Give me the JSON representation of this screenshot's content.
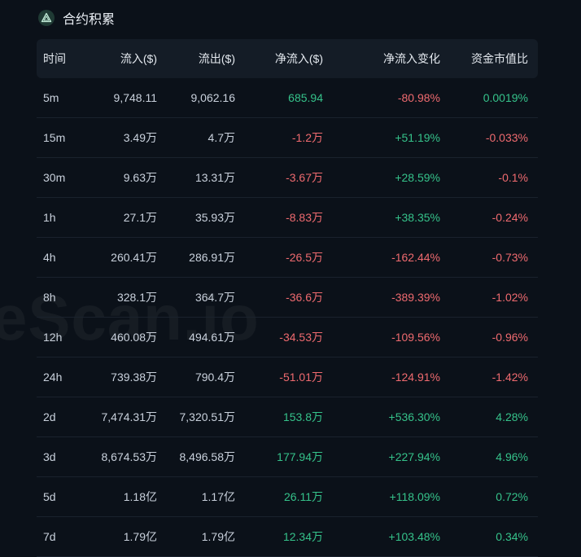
{
  "colors": {
    "positive": "#35c28a",
    "negative": "#ef6a6f",
    "background": "#0b1119"
  },
  "watermark": "eScan.io",
  "header": {
    "icon": "contract-logo-icon",
    "title": "合约积累"
  },
  "table": {
    "columns": [
      "时间",
      "流入($)",
      "流出($)",
      "净流入($)",
      "净流入变化",
      "资金市值比"
    ],
    "rows": [
      {
        "time": "5m",
        "inflow": "9,748.11",
        "outflow": "9,062.16",
        "net": "685.94",
        "net_sign": "pos",
        "change": "-80.98%",
        "change_sign": "neg",
        "ratio": "0.0019%",
        "ratio_sign": "pos"
      },
      {
        "time": "15m",
        "inflow": "3.49万",
        "outflow": "4.7万",
        "net": "-1.2万",
        "net_sign": "neg",
        "change": "+51.19%",
        "change_sign": "pos",
        "ratio": "-0.033%",
        "ratio_sign": "neg"
      },
      {
        "time": "30m",
        "inflow": "9.63万",
        "outflow": "13.31万",
        "net": "-3.67万",
        "net_sign": "neg",
        "change": "+28.59%",
        "change_sign": "pos",
        "ratio": "-0.1%",
        "ratio_sign": "neg"
      },
      {
        "time": "1h",
        "inflow": "27.1万",
        "outflow": "35.93万",
        "net": "-8.83万",
        "net_sign": "neg",
        "change": "+38.35%",
        "change_sign": "pos",
        "ratio": "-0.24%",
        "ratio_sign": "neg"
      },
      {
        "time": "4h",
        "inflow": "260.41万",
        "outflow": "286.91万",
        "net": "-26.5万",
        "net_sign": "neg",
        "change": "-162.44%",
        "change_sign": "neg",
        "ratio": "-0.73%",
        "ratio_sign": "neg"
      },
      {
        "time": "8h",
        "inflow": "328.1万",
        "outflow": "364.7万",
        "net": "-36.6万",
        "net_sign": "neg",
        "change": "-389.39%",
        "change_sign": "neg",
        "ratio": "-1.02%",
        "ratio_sign": "neg"
      },
      {
        "time": "12h",
        "inflow": "460.08万",
        "outflow": "494.61万",
        "net": "-34.53万",
        "net_sign": "neg",
        "change": "-109.56%",
        "change_sign": "neg",
        "ratio": "-0.96%",
        "ratio_sign": "neg"
      },
      {
        "time": "24h",
        "inflow": "739.38万",
        "outflow": "790.4万",
        "net": "-51.01万",
        "net_sign": "neg",
        "change": "-124.91%",
        "change_sign": "neg",
        "ratio": "-1.42%",
        "ratio_sign": "neg"
      },
      {
        "time": "2d",
        "inflow": "7,474.31万",
        "outflow": "7,320.51万",
        "net": "153.8万",
        "net_sign": "pos",
        "change": "+536.30%",
        "change_sign": "pos",
        "ratio": "4.28%",
        "ratio_sign": "pos"
      },
      {
        "time": "3d",
        "inflow": "8,674.53万",
        "outflow": "8,496.58万",
        "net": "177.94万",
        "net_sign": "pos",
        "change": "+227.94%",
        "change_sign": "pos",
        "ratio": "4.96%",
        "ratio_sign": "pos"
      },
      {
        "time": "5d",
        "inflow": "1.18亿",
        "outflow": "1.17亿",
        "net": "26.11万",
        "net_sign": "pos",
        "change": "+118.09%",
        "change_sign": "pos",
        "ratio": "0.72%",
        "ratio_sign": "pos"
      },
      {
        "time": "7d",
        "inflow": "1.79亿",
        "outflow": "1.79亿",
        "net": "12.34万",
        "net_sign": "pos",
        "change": "+103.48%",
        "change_sign": "pos",
        "ratio": "0.34%",
        "ratio_sign": "pos"
      }
    ]
  }
}
